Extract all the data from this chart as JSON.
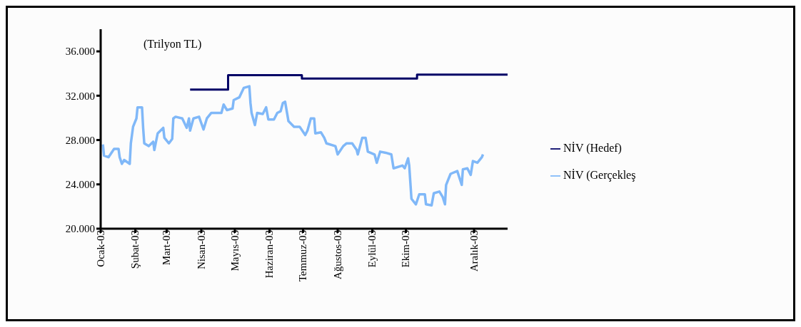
{
  "chart_data": {
    "type": "line",
    "annotations": [
      "(Trilyon TL)"
    ],
    "xlim": [
      "2003-01-01",
      "2003-12-31"
    ],
    "xticks": [
      {
        "value": "2003-01-01",
        "label": "Ocak-03"
      },
      {
        "value": "2003-02-01",
        "label": "Şubat-03"
      },
      {
        "value": "2003-03-01",
        "label": "Mart-03"
      },
      {
        "value": "2003-04-01",
        "label": "Nisan-03"
      },
      {
        "value": "2003-05-01",
        "label": "Mayıs-03"
      },
      {
        "value": "2003-06-01",
        "label": "Haziran-03"
      },
      {
        "value": "2003-07-01",
        "label": "Temmuz-03"
      },
      {
        "value": "2003-08-01",
        "label": "Ağustos-03"
      },
      {
        "value": "2003-09-01",
        "label": "Eylül-03"
      },
      {
        "value": "2003-10-01",
        "label": "Ekim-03"
      },
      {
        "value": "2003-12-01",
        "label": "Aralık-03"
      }
    ],
    "ylim": [
      20000,
      38000
    ],
    "yticks": [
      {
        "value": 20000,
        "label": "20.000"
      },
      {
        "value": 24000,
        "label": "24.000"
      },
      {
        "value": 28000,
        "label": "28.000"
      },
      {
        "value": 32000,
        "label": "32.000"
      },
      {
        "value": 36000,
        "label": "36.000"
      }
    ],
    "legend": "right",
    "marker": "none",
    "line_style": "solid",
    "series": [
      {
        "name": "NİV (Hedef)",
        "type": "step",
        "color": "#000066",
        "x": [
          "2003-03-22",
          "2003-04-25",
          "2003-06-30",
          "2003-10-11",
          "2003-12-31"
        ],
        "values": [
          32550,
          33850,
          33550,
          33900,
          33900
        ]
      },
      {
        "name": "NİV (Gerçekleş",
        "type": "line",
        "color": "#80b8f8",
        "x": [
          "2003-01-03",
          "2003-01-04",
          "2003-01-08",
          "2003-01-13",
          "2003-01-17",
          "2003-01-18",
          "2003-01-20",
          "2003-01-22",
          "2003-01-27",
          "2003-01-28",
          "2003-01-30",
          "2003-02-02",
          "2003-02-03",
          "2003-02-07",
          "2003-02-08",
          "2003-02-09",
          "2003-02-13",
          "2003-02-17",
          "2003-02-18",
          "2003-02-21",
          "2003-02-26",
          "2003-02-27",
          "2003-03-03",
          "2003-03-06",
          "2003-03-07",
          "2003-03-09",
          "2003-03-15",
          "2003-03-19",
          "2003-03-21",
          "2003-03-22",
          "2003-03-25",
          "2003-03-30",
          "2003-04-03",
          "2003-04-06",
          "2003-04-10",
          "2003-04-19",
          "2003-04-21",
          "2003-04-24",
          "2003-04-29",
          "2003-04-30",
          "2003-05-05",
          "2003-05-09",
          "2003-05-14",
          "2003-05-15",
          "2003-05-16",
          "2003-05-19",
          "2003-05-21",
          "2003-05-26",
          "2003-05-29",
          "2003-05-31",
          "2003-06-05",
          "2003-06-08",
          "2003-06-11",
          "2003-06-13",
          "2003-06-15",
          "2003-06-18",
          "2003-06-23",
          "2003-06-28",
          "2003-07-03",
          "2003-07-05",
          "2003-07-08",
          "2003-07-11",
          "2003-07-12",
          "2003-07-17",
          "2003-07-20",
          "2003-07-22",
          "2003-07-30",
          "2003-08-01",
          "2003-08-06",
          "2003-08-09",
          "2003-08-14",
          "2003-08-18",
          "2003-08-19",
          "2003-08-23",
          "2003-08-26",
          "2003-08-28",
          "2003-09-03",
          "2003-09-05",
          "2003-09-08",
          "2003-09-13",
          "2003-09-18",
          "2003-09-20",
          "2003-09-28",
          "2003-09-30",
          "2003-10-03",
          "2003-10-04",
          "2003-10-05",
          "2003-10-06",
          "2003-10-10",
          "2003-10-13",
          "2003-10-18",
          "2003-10-19",
          "2003-10-24",
          "2003-10-26",
          "2003-10-31",
          "2003-11-03",
          "2003-11-05",
          "2003-11-06",
          "2003-11-10",
          "2003-11-16",
          "2003-11-20",
          "2003-11-21",
          "2003-11-25",
          "2003-11-28",
          "2003-11-30",
          "2003-12-04",
          "2003-12-08",
          "2003-12-09"
        ],
        "values": [
          27600,
          26600,
          26450,
          27200,
          27200,
          26450,
          25850,
          26200,
          25850,
          27700,
          29200,
          29950,
          30950,
          30950,
          29100,
          27700,
          27450,
          27850,
          27100,
          28600,
          29100,
          28200,
          27700,
          28100,
          29950,
          30100,
          29950,
          29100,
          29950,
          28850,
          29950,
          30100,
          28950,
          29950,
          30450,
          30450,
          31200,
          30700,
          30850,
          31600,
          31850,
          32700,
          32850,
          31350,
          30450,
          29350,
          30450,
          30350,
          30950,
          29850,
          29850,
          30450,
          30600,
          31350,
          31450,
          29700,
          29200,
          29200,
          28450,
          28850,
          29950,
          29950,
          28600,
          28700,
          28200,
          27700,
          27450,
          26700,
          27450,
          27700,
          27700,
          27100,
          26700,
          28200,
          28200,
          26950,
          26700,
          25950,
          26950,
          26850,
          26700,
          25450,
          25700,
          25450,
          26350,
          25700,
          24200,
          22700,
          22200,
          23100,
          23100,
          22200,
          22100,
          23200,
          23350,
          22850,
          22200,
          23950,
          24950,
          25200,
          23950,
          25350,
          25450,
          24850,
          26100,
          25950,
          26450,
          26700
        ]
      }
    ]
  }
}
